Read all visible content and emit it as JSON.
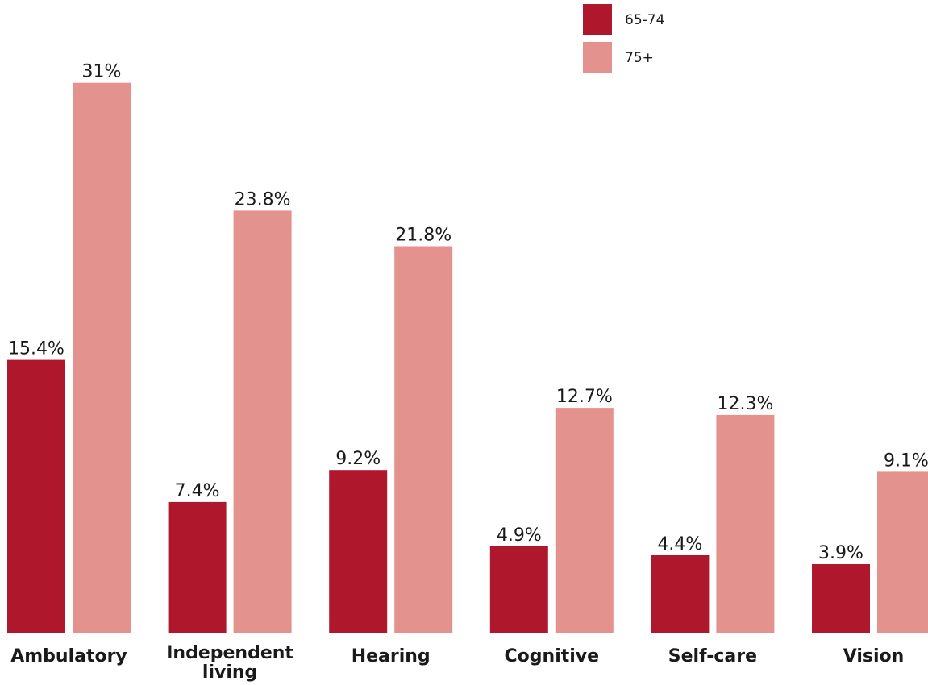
{
  "chart_data": {
    "type": "bar",
    "title": "",
    "xlabel": "",
    "ylabel": "",
    "ylim": [
      0,
      33.3
    ],
    "grid": false,
    "legend_position": "top-right",
    "categories": [
      [
        "Ambulatory"
      ],
      [
        "Independent",
        "living"
      ],
      [
        "Hearing"
      ],
      [
        "Cognitive"
      ],
      [
        "Self-care"
      ],
      [
        "Vision"
      ]
    ],
    "series": [
      {
        "name": "65-74",
        "color": "#ae172c",
        "values": [
          15.4,
          7.4,
          9.2,
          4.9,
          4.4,
          3.9
        ],
        "labels": [
          "15.4%",
          "7.4%",
          "9.2%",
          "4.9%",
          "4.4%",
          "3.9%"
        ]
      },
      {
        "name": "75+",
        "color": "#e3928d",
        "values": [
          31,
          23.8,
          21.8,
          12.7,
          12.3,
          9.1
        ],
        "labels": [
          "31%",
          "23.8%",
          "21.8%",
          "12.7%",
          "12.3%",
          "9.1%"
        ]
      }
    ]
  }
}
